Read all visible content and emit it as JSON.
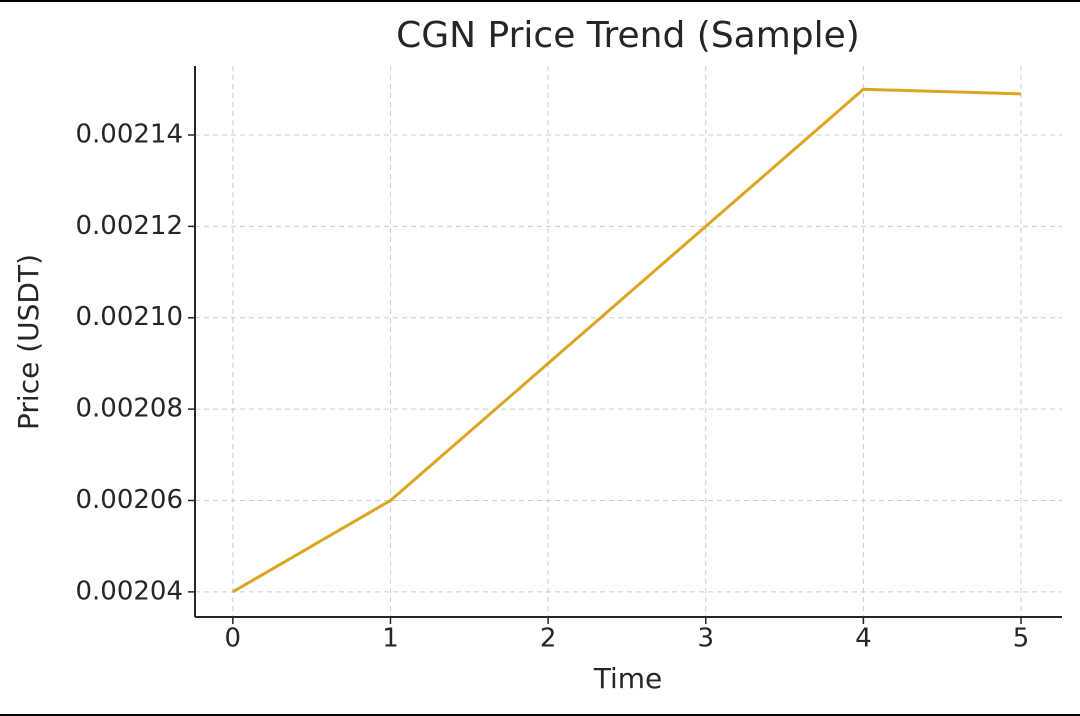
{
  "chart_data": {
    "type": "line",
    "title": "CGN Price Trend (Sample)",
    "x_label": "Time",
    "y_label": "Price (USDT)",
    "x": [
      0,
      1,
      2,
      3,
      4,
      5
    ],
    "series": [
      {
        "name": "CGN",
        "color": "#daa520",
        "values": [
          0.00204,
          0.00206,
          0.00209,
          0.00212,
          0.00215,
          0.002149
        ]
      }
    ],
    "xlim": [
      -0.24,
      5.26
    ],
    "xticks": [
      0,
      1,
      2,
      3,
      4,
      5
    ],
    "ylim": [
      0.0020345,
      0.0021551
    ],
    "yticks": [
      {
        "value": 0.00204,
        "label": "0.00204"
      },
      {
        "value": 0.00206,
        "label": "0.00206"
      },
      {
        "value": 0.00208,
        "label": "0.00208"
      },
      {
        "value": 0.0021,
        "label": "0.00210"
      },
      {
        "value": 0.00212,
        "label": "0.00212"
      },
      {
        "value": 0.00214,
        "label": "0.00214"
      }
    ],
    "grid": true
  }
}
